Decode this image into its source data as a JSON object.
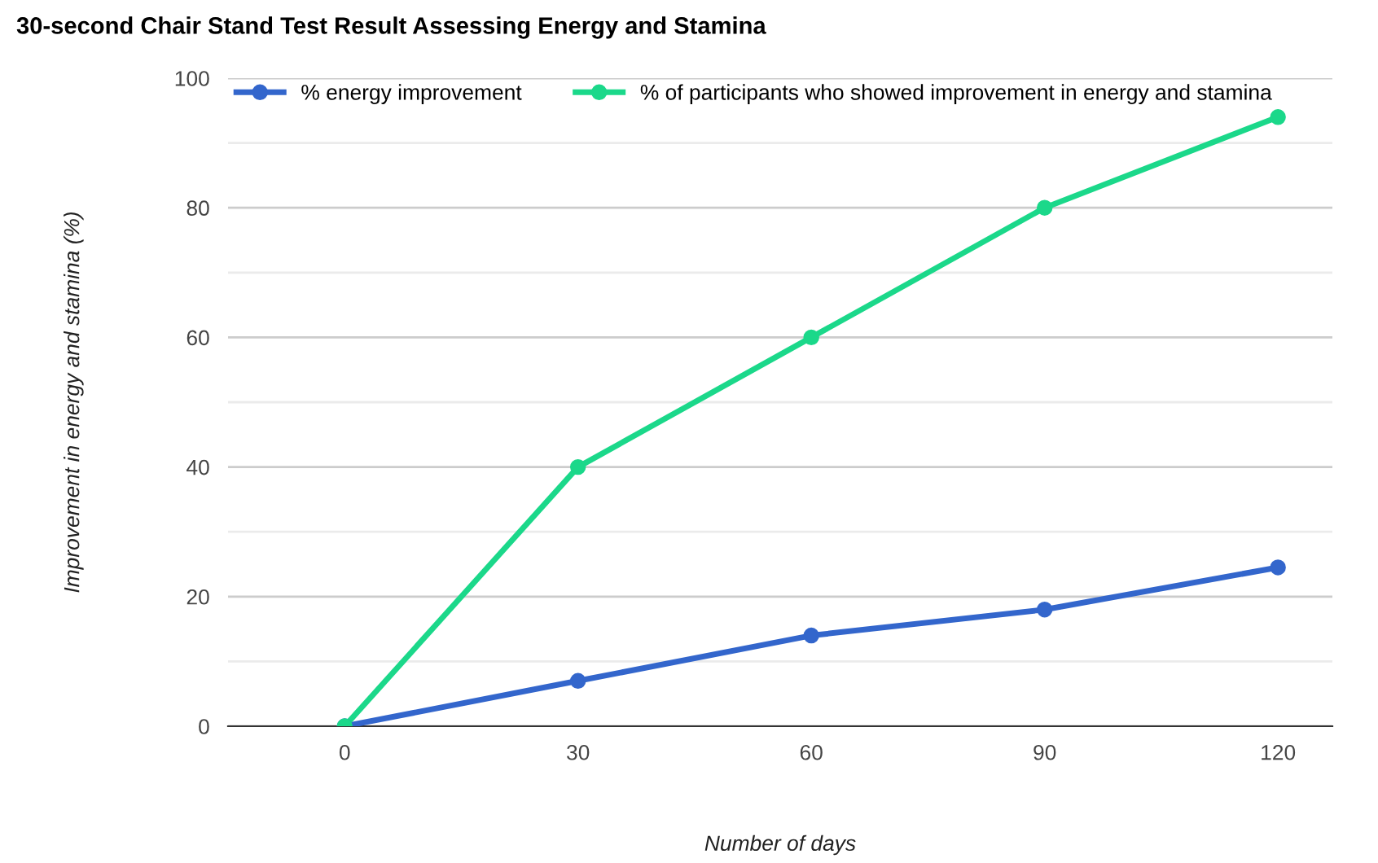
{
  "chart_data": {
    "type": "line",
    "title": "30-second Chair Stand Test Result Assessing Energy and Stamina",
    "xlabel": "Number of days",
    "ylabel": "Improvement in energy and stamina (%)",
    "x": [
      0,
      30,
      60,
      90,
      120
    ],
    "series": [
      {
        "name": "% energy improvement",
        "color": "#3366cc",
        "values": [
          0,
          7,
          14,
          18,
          24.5
        ]
      },
      {
        "name": "% of participants who showed improvement in energy and stamina",
        "color": "#1bd88a",
        "values": [
          0,
          40,
          60,
          80,
          94
        ]
      }
    ],
    "xlim": [
      -15,
      127
    ],
    "xticks": [
      0,
      30,
      60,
      90,
      120
    ],
    "ylim": [
      0,
      100
    ],
    "yticks": [
      0,
      {
        "value": 10,
        "label": null
      },
      20,
      {
        "value": 30,
        "label": null
      },
      40,
      {
        "value": 50,
        "label": null
      },
      60,
      {
        "value": 70,
        "label": null
      },
      80,
      {
        "value": 90,
        "label": null
      },
      100
    ],
    "grid": "y",
    "legend": "top left",
    "marker": "circle",
    "line_style": "solid"
  }
}
